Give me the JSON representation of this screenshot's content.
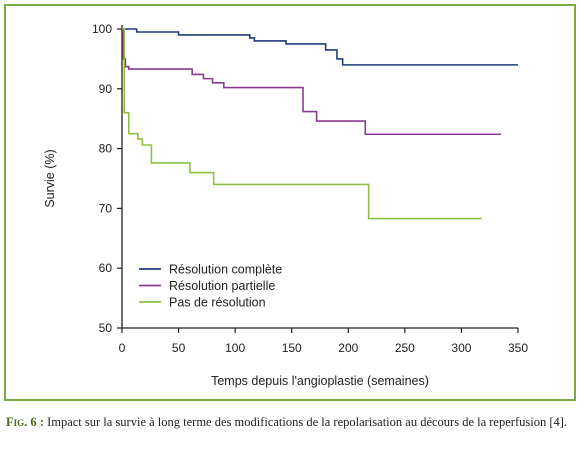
{
  "chart_data": {
    "type": "line",
    "xlabel": "Temps depuis l'angioplastie (semaines)",
    "ylabel": "Survie (%)",
    "xlim": [
      0,
      350
    ],
    "ylim": [
      50,
      100
    ],
    "xticks": [
      0,
      50,
      100,
      150,
      200,
      250,
      300,
      350
    ],
    "yticks": [
      50,
      60,
      70,
      80,
      90,
      100
    ],
    "legend_position": "bottom-left",
    "grid": false,
    "series": [
      {
        "name": "Résolution complète",
        "color": "#1f3d7a",
        "step": true,
        "x": [
          0,
          2,
          13,
          50,
          113,
          117,
          145,
          180,
          190,
          195,
          350
        ],
        "y": [
          100,
          100,
          99.5,
          99.0,
          98.5,
          98.0,
          97.5,
          96.5,
          95.0,
          94.0,
          94.0
        ]
      },
      {
        "name": "Résolution partielle",
        "color": "#8b3a8f",
        "step": true,
        "x": [
          0,
          1,
          3,
          6,
          62,
          72,
          80,
          90,
          160,
          172,
          215,
          335
        ],
        "y": [
          100,
          95,
          93.7,
          93.3,
          92.4,
          91.7,
          91.0,
          90.2,
          86.2,
          84.6,
          82.4,
          82.4
        ]
      },
      {
        "name": "Pas de résolution",
        "color": "#8fc043",
        "step": true,
        "x": [
          0,
          2,
          6,
          14,
          18,
          26,
          60,
          81,
          218,
          318
        ],
        "y": [
          100,
          86.0,
          82.5,
          81.6,
          80.6,
          77.6,
          76.0,
          74.0,
          68.3,
          68.3
        ]
      }
    ]
  },
  "caption": {
    "label": "Fig. 6 :",
    "text": " Impact sur la survie à long terme des modifications de la repolarisation au décours de la reperfusion [4]."
  }
}
